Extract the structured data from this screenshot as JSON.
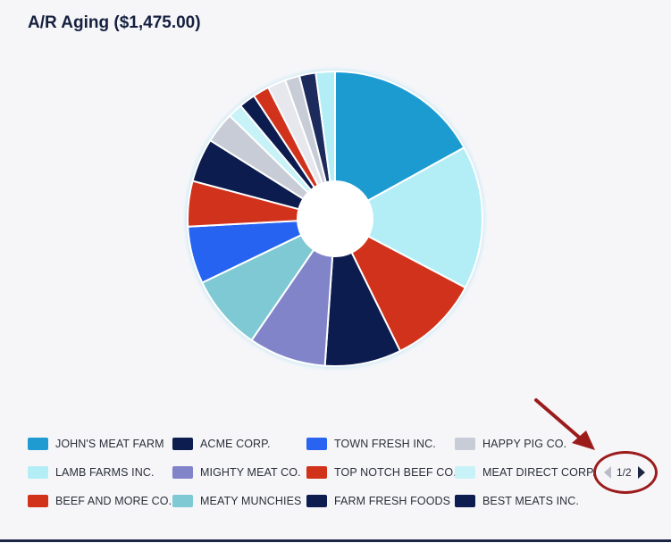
{
  "header": {
    "title": "A/R Aging ($1,475.00)"
  },
  "chart_data": {
    "type": "pie",
    "donut": true,
    "title": "A/R Aging ($1,475.00)",
    "legend_position": "bottom",
    "slices": [
      {
        "name": "JOHN'S MEAT FARM",
        "value": 17.0,
        "color": "#1f9bd1"
      },
      {
        "name": "LAMB FARMS INC.",
        "value": 15.8,
        "color": "#b3eef6"
      },
      {
        "name": "TOP NOTCH BEEF CO.",
        "value": 10.0,
        "color": "#d1321a"
      },
      {
        "name": "FARM FRESH FOODS",
        "value": 8.4,
        "color": "#0d1d50"
      },
      {
        "name": "MIGHTY MEAT CO.",
        "value": 8.5,
        "color": "#8184c8"
      },
      {
        "name": "MEATY MUNCHIES",
        "value": 8.3,
        "color": "#7ec9d3"
      },
      {
        "name": "TOWN FRESH INC.",
        "value": 6.3,
        "color": "#2864f0"
      },
      {
        "name": "BEEF AND MORE CO.",
        "value": 5.0,
        "color": "#d1321a"
      },
      {
        "name": "ACME CORP.",
        "value": 4.8,
        "color": "#0d1d50"
      },
      {
        "name": "HAPPY PIG CO.",
        "value": 3.4,
        "color": "#c7ccd6"
      },
      {
        "name": "MEAT DIRECT CORP.",
        "value": 1.6,
        "color": "#c7f3f8"
      },
      {
        "name": "BEST MEATS INC.",
        "value": 1.8,
        "color": "#0d1d50"
      },
      {
        "name": "",
        "value": 1.8,
        "color": "#d1321a"
      },
      {
        "name": "",
        "value": 2.0,
        "color": "#e6e8ee"
      },
      {
        "name": "",
        "value": 1.6,
        "color": "#c7ccd6"
      },
      {
        "name": "",
        "value": 1.8,
        "color": "#1a2a5c"
      },
      {
        "name": "",
        "value": 2.1,
        "color": "#b3eef6"
      }
    ]
  },
  "legend": {
    "items": [
      {
        "label": "JOHN'S MEAT FARM",
        "color": "#1f9bd1"
      },
      {
        "label": "ACME CORP.",
        "color": "#0d1d50"
      },
      {
        "label": "TOWN FRESH INC.",
        "color": "#2864f0"
      },
      {
        "label": "HAPPY PIG CO.",
        "color": "#c7ccd6"
      },
      {
        "label": "LAMB FARMS INC.",
        "color": "#b3eef6"
      },
      {
        "label": "MIGHTY MEAT CO.",
        "color": "#8184c8"
      },
      {
        "label": "TOP NOTCH BEEF CO.",
        "color": "#d1321a"
      },
      {
        "label": "MEAT DIRECT CORP.",
        "color": "#c7f3f8"
      },
      {
        "label": "BEEF AND MORE CO.",
        "color": "#d1321a"
      },
      {
        "label": "MEATY MUNCHIES",
        "color": "#7ec9d3"
      },
      {
        "label": "FARM FRESH FOODS",
        "color": "#0d1d50"
      },
      {
        "label": "BEST MEATS INC.",
        "color": "#0d1d50"
      }
    ]
  },
  "pager": {
    "text": "1/2",
    "current": 1,
    "total": 2
  },
  "annotation": {
    "color": "#9c1c1c"
  }
}
